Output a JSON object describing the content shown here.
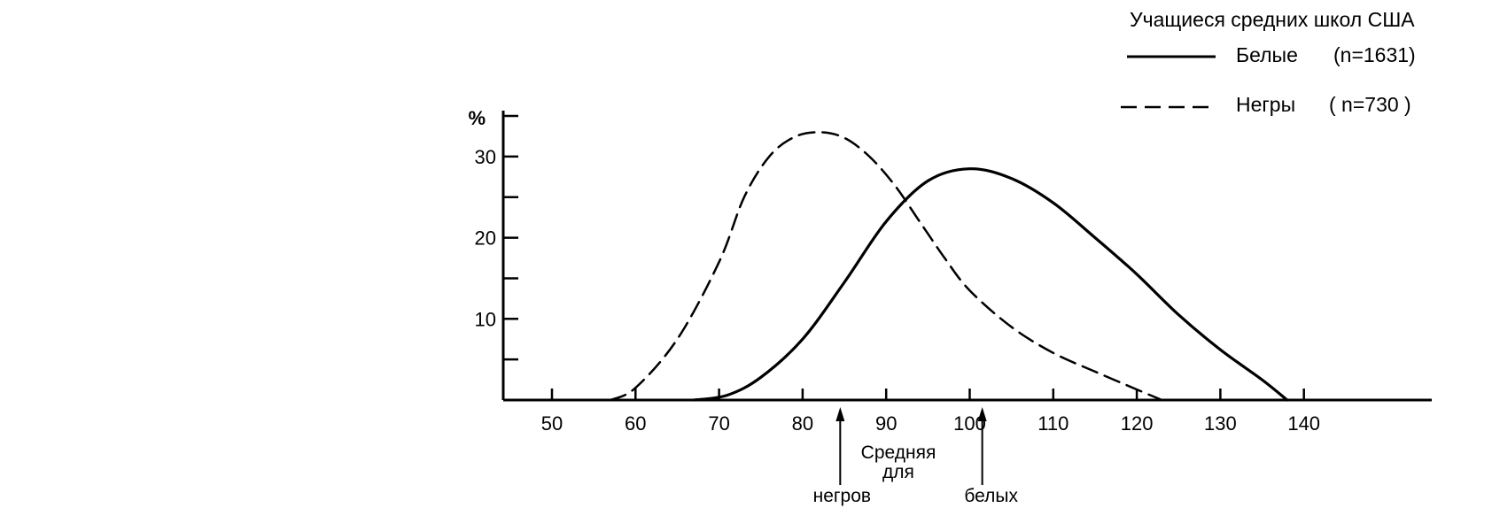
{
  "chart_data": {
    "type": "line",
    "title": "Учащиеся средних школ США",
    "ylabel": "%",
    "xlabel": "",
    "xlim": [
      45,
      162
    ],
    "ylim": [
      0,
      36
    ],
    "x_ticks": [
      50,
      60,
      70,
      80,
      90,
      100,
      110,
      120,
      130,
      140
    ],
    "y_ticks_labeled": [
      10,
      20,
      30
    ],
    "y_ticks_minor": [
      5,
      15,
      25,
      35
    ],
    "grid": false,
    "legend_position": "top-right",
    "series": [
      {
        "name": "Белые",
        "n_label": "(n=1631)",
        "style": "solid",
        "points": [
          [
            67,
            0
          ],
          [
            71,
            0.6
          ],
          [
            75,
            2.8
          ],
          [
            80,
            7.5
          ],
          [
            85,
            14.5
          ],
          [
            90,
            22
          ],
          [
            95,
            27
          ],
          [
            100,
            28.5
          ],
          [
            105,
            27.3
          ],
          [
            110,
            24.3
          ],
          [
            115,
            20
          ],
          [
            120,
            15.5
          ],
          [
            125,
            10.5
          ],
          [
            130,
            6.2
          ],
          [
            135,
            2.5
          ],
          [
            138,
            0
          ]
        ]
      },
      {
        "name": "Негры",
        "n_label": "( n=730 )",
        "style": "dashed",
        "points": [
          [
            57,
            0
          ],
          [
            60,
            1.5
          ],
          [
            65,
            7.5
          ],
          [
            70,
            17
          ],
          [
            73,
            25
          ],
          [
            76,
            30
          ],
          [
            79,
            32.4
          ],
          [
            82,
            33
          ],
          [
            85,
            32.3
          ],
          [
            88,
            30
          ],
          [
            91,
            26.5
          ],
          [
            94,
            22
          ],
          [
            97,
            17.5
          ],
          [
            100,
            13.5
          ],
          [
            105,
            9
          ],
          [
            110,
            5.8
          ],
          [
            115,
            3.5
          ],
          [
            120,
            1.3
          ],
          [
            123,
            0
          ]
        ]
      }
    ],
    "annotations": {
      "mean_title": "Средняя",
      "mean_for": "для",
      "negro_label": "негров",
      "negro_mean_x": 84.5,
      "white_label": "белых",
      "white_mean_x": 101.5
    }
  }
}
